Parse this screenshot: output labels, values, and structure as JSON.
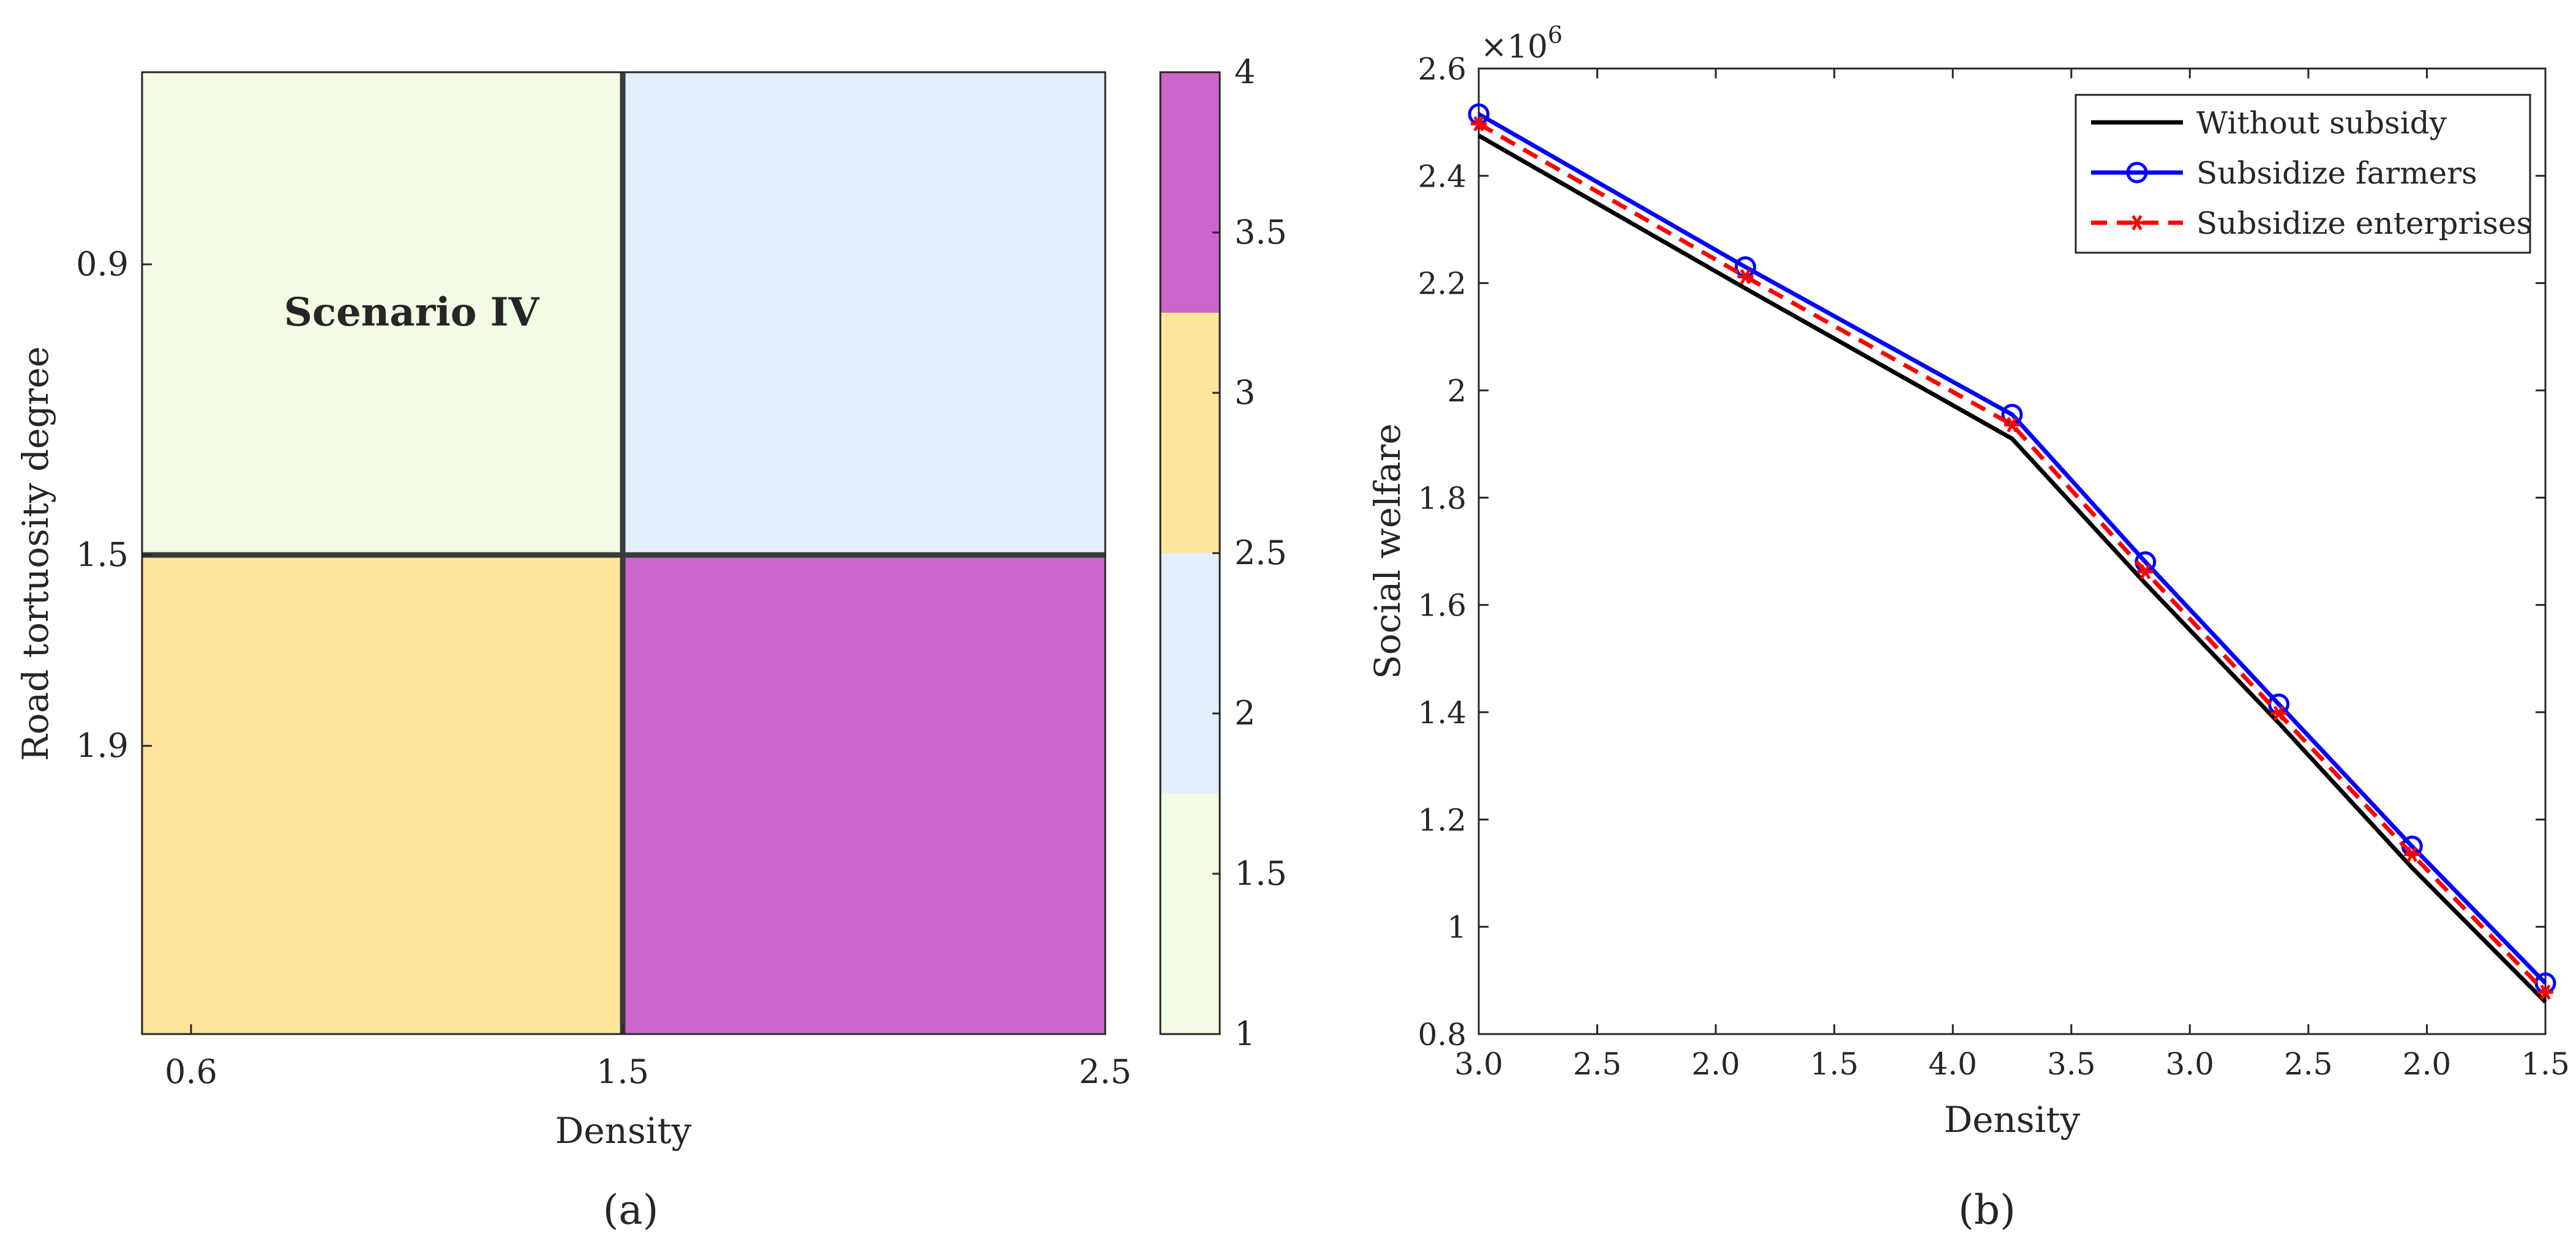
{
  "chart_data": [
    {
      "type": "heatmap",
      "panel_label": "(a)",
      "xlabel": "Density",
      "ylabel": "Road tortuosity degree",
      "x_ticks": [
        "0.6",
        "1.5",
        "2.5"
      ],
      "y_ticks": [
        "0.9",
        "1.5",
        "1.9"
      ],
      "cells": [
        {
          "row": 0,
          "col": 0,
          "value": 1,
          "color": "#f2fbe4"
        },
        {
          "row": 0,
          "col": 1,
          "value": 2,
          "color": "#e3f0fb"
        },
        {
          "row": 1,
          "col": 0,
          "value": 3,
          "color": "#fde59c"
        },
        {
          "row": 1,
          "col": 1,
          "value": 4,
          "color": "#cc66cc"
        }
      ],
      "annotation": "Scenario IV",
      "colorbar": {
        "range": [
          1,
          4
        ],
        "ticks": [
          "1",
          "1.5",
          "2",
          "2.5",
          "3",
          "3.5",
          "4"
        ],
        "segments": [
          {
            "from": 1,
            "to": 1.75,
            "color": "#f2fbe4"
          },
          {
            "from": 1.75,
            "to": 2.5,
            "color": "#e3f0fb"
          },
          {
            "from": 2.5,
            "to": 3.25,
            "color": "#fde59c"
          },
          {
            "from": 3.25,
            "to": 4,
            "color": "#cc66cc"
          }
        ]
      }
    },
    {
      "type": "line",
      "panel_label": "(b)",
      "xlabel": "Density",
      "ylabel": "Social welfare",
      "y_exponent": "×10",
      "y_exponent_power": "6",
      "ylim": [
        0.8,
        2.6
      ],
      "y_ticks": [
        0.8,
        1,
        1.2,
        1.4,
        1.6,
        1.8,
        2,
        2.2,
        2.4,
        2.6
      ],
      "y_tick_labels": [
        "0.8",
        "1",
        "1.2",
        "1.4",
        "1.6",
        "1.8",
        "2",
        "2.2",
        "2.4",
        "2.6"
      ],
      "x_tick_labels": [
        "3.0",
        "2.5",
        "2.0",
        "1.5",
        "4.0",
        "3.5",
        "3.0",
        "2.5",
        "2.0",
        "1.5"
      ],
      "legend_position": "top-right",
      "x": [
        0,
        3,
        6,
        7.5,
        9,
        10.5,
        12
      ],
      "series": [
        {
          "name": "Without subsidy",
          "color": "#000000",
          "marker": "none",
          "dash": "solid",
          "values": [
            2.475,
            2.19,
            1.91,
            1.64,
            1.38,
            1.11,
            0.86
          ]
        },
        {
          "name": "Subsidize farmers",
          "color": "#0000ff",
          "marker": "circle",
          "dash": "solid",
          "values": [
            2.515,
            2.23,
            1.955,
            1.68,
            1.415,
            1.15,
            0.895
          ]
        },
        {
          "name": "Subsidize enterprises",
          "color": "#ff0000",
          "marker": "asterisk",
          "dash": "dashed",
          "values": [
            2.497,
            2.212,
            1.936,
            1.662,
            1.398,
            1.135,
            0.878
          ]
        }
      ]
    }
  ]
}
